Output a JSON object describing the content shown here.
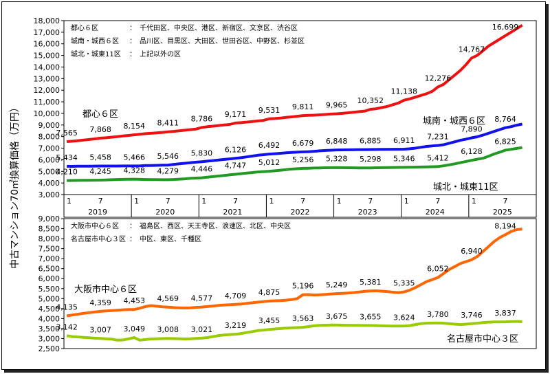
{
  "y_axis_label": "中古マンション70㎡換算価格（万円）",
  "chart_data": [
    {
      "type": "line",
      "ylim": [
        3000,
        18000
      ],
      "y_ticks": [
        "3,000",
        "4,000",
        "5,000",
        "6,000",
        "7,000",
        "8,000",
        "9,000",
        "10,000",
        "11,000",
        "12,000",
        "13,000",
        "14,000",
        "15,000",
        "16,000",
        "17,000",
        "18,000"
      ],
      "x_month_ticks": [
        "1",
        "7",
        "1",
        "7",
        "1",
        "7",
        "1",
        "7",
        "1",
        "7",
        "1",
        "7",
        "1",
        "7"
      ],
      "years": [
        "2019",
        "2020",
        "2021",
        "2022",
        "2023",
        "2024",
        "2025"
      ],
      "legend_lines": [
        {
          "name": "都心６区",
          "sep": "：",
          "wards": "千代田区、中央区、港区、新宿区、文京区、渋谷区"
        },
        {
          "name": "城南・城西６区",
          "sep": "：",
          "wards": "品川区、目黒区、大田区、世田谷区、中野区、杉並区"
        },
        {
          "name": "城北・城東11区",
          "sep": "：",
          "wards": "上記以外の区"
        }
      ],
      "series": [
        {
          "name": "都心６区",
          "label": "都心６区",
          "color": "#ee1111",
          "values": [
            7565,
            7600,
            7650,
            7700,
            7750,
            7800,
            7868,
            7900,
            7950,
            8000,
            8050,
            8100,
            8154,
            8200,
            8250,
            8280,
            8320,
            8360,
            8411,
            8450,
            8500,
            8550,
            8600,
            8650,
            8786,
            8850,
            8900,
            8950,
            9000,
            9050,
            9171,
            9200,
            9250,
            9300,
            9350,
            9400,
            9531,
            9560,
            9600,
            9650,
            9700,
            9750,
            9811,
            9830,
            9850,
            9880,
            9910,
            9940,
            9965,
            10000,
            10050,
            10100,
            10150,
            10200,
            10352,
            10400,
            10500,
            10600,
            10750,
            10900,
            11138,
            11250,
            11400,
            11550,
            11700,
            11900,
            12276,
            12500,
            12900,
            13300,
            13700,
            14200,
            14767,
            15000,
            15400,
            15800,
            16100,
            16400,
            16699,
            17000,
            17300,
            17600
          ],
          "labels": [
            [
              0,
              7565
            ],
            [
              6,
              7868
            ],
            [
              12,
              8154
            ],
            [
              18,
              8411
            ],
            [
              24,
              8786
            ],
            [
              30,
              9171
            ],
            [
              36,
              9531
            ],
            [
              42,
              9811
            ],
            [
              48,
              9965
            ],
            [
              54,
              10352
            ],
            [
              60,
              11138
            ],
            [
              66,
              12276
            ],
            [
              72,
              14767
            ],
            [
              78,
              16699
            ]
          ]
        },
        {
          "name": "城南・城西６区",
          "label": "城南・城西６区",
          "color": "#1111ee",
          "values": [
            5434,
            5430,
            5440,
            5445,
            5450,
            5455,
            5458,
            5460,
            5462,
            5463,
            5464,
            5465,
            5466,
            5480,
            5500,
            5510,
            5520,
            5535,
            5546,
            5600,
            5650,
            5700,
            5750,
            5790,
            5830,
            5880,
            5930,
            5980,
            6030,
            6080,
            6126,
            6180,
            6250,
            6320,
            6390,
            6440,
            6492,
            6520,
            6560,
            6600,
            6630,
            6660,
            6679,
            6700,
            6730,
            6770,
            6800,
            6825,
            6848,
            6855,
            6860,
            6870,
            6875,
            6880,
            6885,
            6890,
            6895,
            6900,
            6905,
            6908,
            6911,
            6950,
            7000,
            7080,
            7150,
            7200,
            7231,
            7300,
            7420,
            7550,
            7680,
            7780,
            7890,
            7980,
            8120,
            8280,
            8440,
            8600,
            8764,
            8850,
            8980,
            9080
          ],
          "labels": [
            [
              0,
              5434
            ],
            [
              6,
              5458
            ],
            [
              12,
              5466
            ],
            [
              18,
              5546
            ],
            [
              24,
              5830
            ],
            [
              30,
              6126
            ],
            [
              36,
              6492
            ],
            [
              42,
              6679
            ],
            [
              48,
              6848
            ],
            [
              54,
              6885
            ],
            [
              60,
              6911
            ],
            [
              66,
              7231
            ],
            [
              72,
              7890
            ],
            [
              78,
              8764
            ]
          ]
        },
        {
          "name": "城北・城東11区",
          "label": "城北・城東11区",
          "color": "#229922",
          "values": [
            4210,
            4215,
            4220,
            4225,
            4232,
            4240,
            4245,
            4260,
            4280,
            4300,
            4310,
            4320,
            4328,
            4310,
            4300,
            4290,
            4285,
            4280,
            4279,
            4300,
            4330,
            4360,
            4400,
            4420,
            4446,
            4500,
            4550,
            4600,
            4650,
            4700,
            4747,
            4800,
            4850,
            4900,
            4950,
            4980,
            5012,
            5050,
            5100,
            5150,
            5200,
            5230,
            5256,
            5270,
            5290,
            5300,
            5310,
            5320,
            5328,
            5320,
            5310,
            5305,
            5300,
            5298,
            5298,
            5310,
            5320,
            5330,
            5335,
            5340,
            5346,
            5355,
            5365,
            5375,
            5390,
            5400,
            5412,
            5480,
            5560,
            5650,
            5750,
            5850,
            5950,
            6050,
            6128,
            6300,
            6500,
            6650,
            6825,
            6900,
            6980,
            7050
          ],
          "labels": [
            [
              0,
              4210
            ],
            [
              6,
              4245
            ],
            [
              12,
              4328
            ],
            [
              18,
              4279
            ],
            [
              24,
              4446
            ],
            [
              30,
              4747
            ],
            [
              36,
              5012
            ],
            [
              42,
              5256
            ],
            [
              48,
              5328
            ],
            [
              54,
              5298
            ],
            [
              60,
              5346
            ],
            [
              66,
              5412
            ],
            [
              72,
              6128
            ],
            [
              78,
              6825
            ]
          ]
        }
      ]
    },
    {
      "type": "line",
      "ylim": [
        2500,
        9000
      ],
      "y_ticks": [
        "2,500",
        "3,000",
        "3,500",
        "4,000",
        "4,500",
        "5,000",
        "5,500",
        "6,000",
        "6,500",
        "7,000",
        "7,500",
        "8,000",
        "8,500",
        "9,000"
      ],
      "legend_lines": [
        {
          "name": "大阪市中心６区",
          "sep": "：",
          "wards": "福島区、西区、天王寺区、浪速区、北区、中央区"
        },
        {
          "name": "名古屋市中心３区",
          "sep": "：",
          "wards": "中区、東区、千種区"
        }
      ],
      "series": [
        {
          "name": "大阪市中心６区",
          "label": "大阪市中心６区",
          "color": "#ff6600",
          "values": [
            4135,
            4180,
            4220,
            4260,
            4300,
            4330,
            4359,
            4380,
            4400,
            4420,
            4440,
            4450,
            4453,
            4520,
            4600,
            4650,
            4620,
            4590,
            4569,
            4550,
            4540,
            4530,
            4540,
            4560,
            4577,
            4600,
            4630,
            4660,
            4680,
            4690,
            4709,
            4730,
            4760,
            4790,
            4820,
            4850,
            4875,
            4890,
            4900,
            4920,
            4950,
            5000,
            5196,
            5200,
            5180,
            5190,
            5210,
            5230,
            5249,
            5260,
            5280,
            5300,
            5330,
            5360,
            5381,
            5390,
            5370,
            5350,
            5320,
            5300,
            5335,
            5420,
            5550,
            5700,
            5850,
            5950,
            6052,
            6250,
            6450,
            6600,
            6750,
            6850,
            6940,
            7100,
            7350,
            7600,
            7850,
            8050,
            8194,
            8350,
            8450,
            8480
          ],
          "labels": [
            [
              0,
              4135
            ],
            [
              6,
              4359
            ],
            [
              12,
              4453
            ],
            [
              18,
              4569
            ],
            [
              24,
              4577
            ],
            [
              30,
              4709
            ],
            [
              36,
              4875
            ],
            [
              42,
              5196
            ],
            [
              48,
              5249
            ],
            [
              54,
              5381
            ],
            [
              60,
              5335
            ],
            [
              66,
              6052
            ],
            [
              72,
              6940
            ],
            [
              78,
              8194
            ]
          ]
        },
        {
          "name": "名古屋市中心３区",
          "label": "名古屋市中心３区",
          "color": "#99cc00",
          "values": [
            3142,
            3100,
            3080,
            3060,
            3040,
            3020,
            3007,
            2990,
            2970,
            2920,
            2930,
            2990,
            3049,
            2920,
            2950,
            2980,
            2990,
            3000,
            3008,
            3000,
            2990,
            2980,
            2990,
            3010,
            3021,
            3050,
            3100,
            3150,
            3180,
            3200,
            3219,
            3250,
            3300,
            3350,
            3400,
            3420,
            3455,
            3480,
            3500,
            3520,
            3540,
            3550,
            3563,
            3600,
            3640,
            3660,
            3670,
            3675,
            3675,
            3670,
            3665,
            3660,
            3658,
            3656,
            3655,
            3650,
            3640,
            3630,
            3625,
            3624,
            3624,
            3650,
            3700,
            3750,
            3770,
            3775,
            3780,
            3770,
            3750,
            3720,
            3700,
            3720,
            3746,
            3770,
            3800,
            3820,
            3830,
            3835,
            3837,
            3850,
            3860,
            3840
          ],
          "labels": [
            [
              0,
              3142
            ],
            [
              6,
              3007
            ],
            [
              12,
              3049
            ],
            [
              18,
              3008
            ],
            [
              24,
              3021
            ],
            [
              30,
              3219
            ],
            [
              36,
              3455
            ],
            [
              42,
              3563
            ],
            [
              48,
              3675
            ],
            [
              54,
              3655
            ],
            [
              60,
              3624
            ],
            [
              66,
              3780
            ],
            [
              72,
              3746
            ],
            [
              78,
              3837
            ]
          ]
        }
      ]
    }
  ]
}
